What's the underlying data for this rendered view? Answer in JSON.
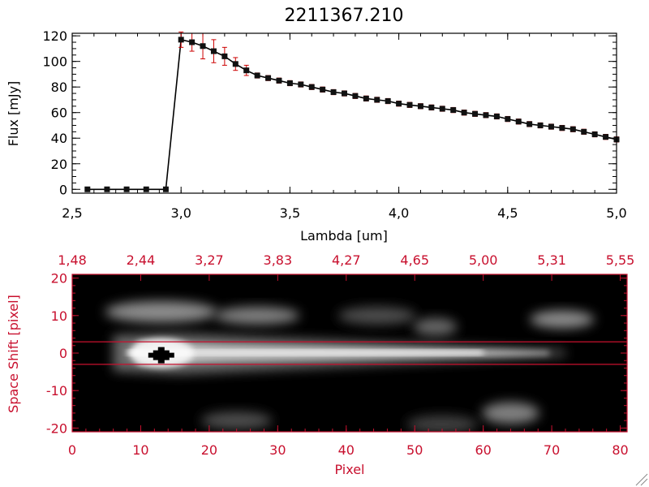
{
  "colors": {
    "axis": "#000000",
    "red": "#c8102e",
    "marker": "#111111",
    "errorbar": "#cc0000"
  },
  "chart_data": [
    {
      "type": "line",
      "title": "2211367.210",
      "xlabel": "Lambda [um]",
      "ylabel": "Flux [mJy]",
      "xlim": [
        2.5,
        5.0
      ],
      "ylim": [
        -3,
        122
      ],
      "xticks": [
        2.5,
        3.0,
        3.5,
        4.0,
        4.5,
        5.0
      ],
      "xtick_labels": [
        "2,5",
        "3,0",
        "3,5",
        "4,0",
        "4,5",
        "5,0"
      ],
      "yticks": [
        0,
        20,
        40,
        60,
        80,
        100,
        120
      ],
      "ytick_labels": [
        "0",
        "20",
        "40",
        "60",
        "80",
        "100",
        "120"
      ],
      "grid": false,
      "series": [
        {
          "x": [
            2.57,
            2.66,
            2.75,
            2.84,
            2.93,
            3.0,
            3.05,
            3.1,
            3.15,
            3.2,
            3.25,
            3.3,
            3.35,
            3.4,
            3.45,
            3.5,
            3.55,
            3.6,
            3.65,
            3.7,
            3.75,
            3.8,
            3.85,
            3.9,
            3.95,
            4.0,
            4.05,
            4.1,
            4.15,
            4.2,
            4.25,
            4.3,
            4.35,
            4.4,
            4.45,
            4.5,
            4.55,
            4.6,
            4.65,
            4.7,
            4.75,
            4.8,
            4.85,
            4.9,
            4.95,
            5.0
          ],
          "y": [
            0,
            0,
            0,
            0,
            0,
            117,
            115,
            112,
            108,
            104,
            98,
            93,
            89,
            87,
            85,
            83,
            82,
            80,
            78,
            76,
            75,
            73,
            71,
            70,
            69,
            67,
            66,
            65,
            64,
            63,
            62,
            60,
            59,
            58,
            57,
            55,
            53,
            51,
            50,
            49,
            48,
            47,
            45,
            43,
            41,
            39
          ],
          "yerr": [
            0,
            0,
            0,
            0,
            0,
            6,
            7,
            10,
            9,
            7,
            5,
            4,
            2,
            2,
            2,
            2,
            2,
            2,
            2,
            2,
            2,
            2,
            2,
            2,
            2,
            2,
            2,
            2,
            2,
            2,
            2,
            2,
            2,
            2,
            2,
            2,
            2,
            2,
            2,
            2,
            2,
            2,
            2,
            2,
            2,
            2
          ]
        }
      ]
    },
    {
      "type": "heatmap",
      "xlabel": "Pixel",
      "ylabel": "Space Shift [pixel]",
      "xlim": [
        0,
        81
      ],
      "ylim": [
        -21,
        21
      ],
      "xticks": [
        0,
        10,
        20,
        30,
        40,
        50,
        60,
        70,
        80
      ],
      "xtick_labels": [
        "0",
        "10",
        "20",
        "30",
        "40",
        "50",
        "60",
        "70",
        "80"
      ],
      "yticks": [
        -20,
        -10,
        0,
        10,
        20
      ],
      "ytick_labels": [
        "-20",
        "-10",
        "0",
        "10",
        "20"
      ],
      "top_axis_labels": [
        "1,48",
        "2,44",
        "3,27",
        "3,83",
        "4,27",
        "4,65",
        "5,00",
        "5,31",
        "5,55"
      ],
      "aperture_lines_y": [
        3,
        -3
      ],
      "features": [
        {
          "kind": "trace",
          "x_start": 6,
          "x_end": 72,
          "y": 0,
          "peak": 1.0
        },
        {
          "kind": "blob",
          "x": 6,
          "y": 11,
          "width": 14,
          "height": 4,
          "intensity": 0.55
        },
        {
          "kind": "blob",
          "x": 22,
          "y": 10,
          "width": 10,
          "height": 3,
          "intensity": 0.5
        },
        {
          "kind": "blob",
          "x": 40,
          "y": 10,
          "width": 9,
          "height": 3,
          "intensity": 0.3
        },
        {
          "kind": "blob",
          "x": 51,
          "y": 7,
          "width": 4,
          "height": 3,
          "intensity": 0.4
        },
        {
          "kind": "blob",
          "x": 68,
          "y": 9,
          "width": 7,
          "height": 3,
          "intensity": 0.55
        },
        {
          "kind": "blob",
          "x": 61,
          "y": -16,
          "width": 6,
          "height": 4,
          "intensity": 0.5
        },
        {
          "kind": "blob",
          "x": 20,
          "y": -18,
          "width": 8,
          "height": 3,
          "intensity": 0.3
        },
        {
          "kind": "blob",
          "x": 50,
          "y": -19,
          "width": 8,
          "height": 3,
          "intensity": 0.25
        }
      ],
      "bad_pixel": {
        "x": 13,
        "y": -1
      }
    }
  ]
}
